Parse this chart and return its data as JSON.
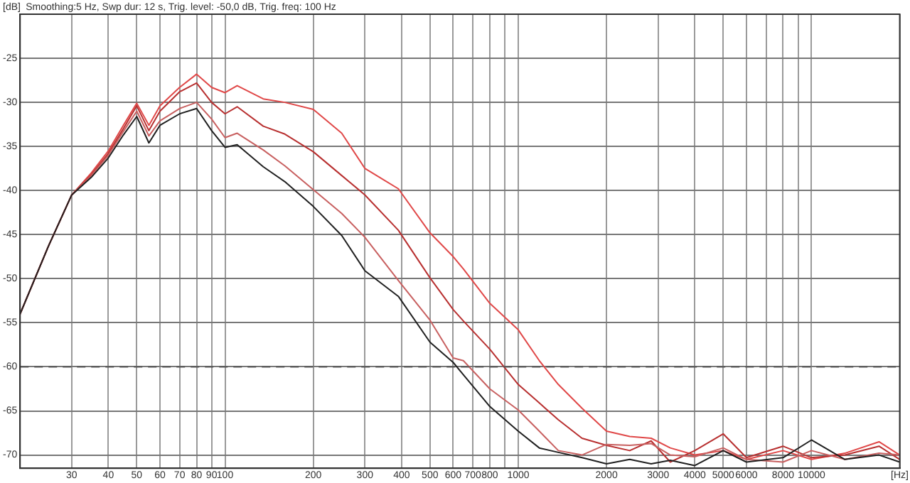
{
  "chart_data": {
    "type": "line",
    "title": "Smoothing:5 Hz, Swp dur: 12 s, Trig. level: -50,0 dB, Trig. freq: 100 Hz",
    "ylabel": "[dB]",
    "x": [
      20,
      25,
      30,
      35,
      40,
      45,
      50,
      55,
      60,
      70,
      80,
      90,
      100,
      110,
      135,
      160,
      200,
      250,
      300,
      390,
      500,
      600,
      650,
      800,
      1000,
      1180,
      1370,
      1650,
      2000,
      2400,
      2840,
      3300,
      4000,
      5000,
      6000,
      8000,
      10000,
      13000,
      17000,
      20000
    ],
    "series": [
      {
        "color": "#202020",
        "values": [
          -54,
          -46.3,
          -40.5,
          -38.5,
          -36.3,
          -33.7,
          -31.6,
          -34.6,
          -32.6,
          -31.3,
          -30.7,
          -33.2,
          -35.1,
          -34.8,
          -37.3,
          -39,
          -41.8,
          -45.1,
          -49.1,
          -52,
          -57.2,
          -59.5,
          -60.9,
          -64.5,
          -67.3,
          -69.2,
          -69.7,
          -70.3,
          -71,
          -70.5,
          -71,
          -70.6,
          -71.2,
          -69.5,
          -70.8,
          -70.3,
          -68.3,
          -70.5,
          -70,
          -70.8
        ]
      },
      {
        "color": "#c86060",
        "values": [
          -54,
          -46.3,
          -40.5,
          -38.3,
          -36,
          -33.3,
          -31,
          -33.8,
          -32.1,
          -30.7,
          -30,
          -31.9,
          -34,
          -33.5,
          -35.4,
          -37.2,
          -39.9,
          -42.6,
          -45.3,
          -50.2,
          -54.7,
          -59,
          -59.3,
          -62.5,
          -64.9,
          -67.3,
          -69.5,
          -70,
          -68.8,
          -68.9,
          -68.7,
          -70,
          -70.2,
          -69.2,
          -70.5,
          -70.8,
          -69.5,
          -70.5,
          -69.8,
          -70
        ]
      },
      {
        "color": "#b83030",
        "values": [
          -54,
          -46.3,
          -40.5,
          -38.2,
          -35.8,
          -33,
          -30.4,
          -33.2,
          -31,
          -28.8,
          -27.8,
          -30,
          -31.3,
          -30.5,
          -32.7,
          -33.6,
          -35.6,
          -38.3,
          -40.5,
          -44.5,
          -49.9,
          -53.5,
          -54.8,
          -58,
          -62,
          -64.1,
          -66,
          -68.1,
          -68.9,
          -69.5,
          -68.4,
          -70.8,
          -69.5,
          -67.6,
          -70.3,
          -69,
          -70.3,
          -70,
          -69,
          -70.5
        ]
      },
      {
        "color": "#e04848",
        "values": [
          -54,
          -46.3,
          -40.5,
          -38,
          -35.5,
          -32.6,
          -30.1,
          -32.6,
          -30.4,
          -28.3,
          -26.8,
          -28.3,
          -28.9,
          -28.1,
          -29.6,
          -30,
          -30.8,
          -33.5,
          -37.5,
          -39.8,
          -44.8,
          -47.5,
          -48.9,
          -52.8,
          -55.8,
          -59.3,
          -62,
          -64.7,
          -67.3,
          -67.9,
          -68.1,
          -69.2,
          -70,
          -69.5,
          -70.5,
          -69.5,
          -70.5,
          -69.8,
          -68.5,
          -70
        ]
      }
    ],
    "log": "x",
    "xlim": [
      20,
      20000
    ],
    "xticks": [
      30,
      40,
      50,
      60,
      70,
      80,
      90,
      100,
      200,
      300,
      400,
      500,
      600,
      700,
      800,
      {
        "value": 900,
        "label": null
      },
      1000,
      2000,
      3000,
      4000,
      5000,
      6000,
      {
        "value": 7000,
        "label": null
      },
      8000,
      {
        "value": 9000,
        "label": null
      },
      10000,
      {
        "value": 20000,
        "label": "[Hz]"
      }
    ],
    "ylim": [
      -71.5,
      -20
    ],
    "yticks": [
      -25,
      -30,
      -35,
      -40,
      -45,
      -50,
      -55,
      -60,
      -65,
      -70
    ],
    "ref_lines": [
      {
        "axis": "y",
        "value": -60,
        "line_style": "dashed"
      }
    ],
    "grid": true,
    "legend": false,
    "marker": "none",
    "line_style": "solid"
  }
}
